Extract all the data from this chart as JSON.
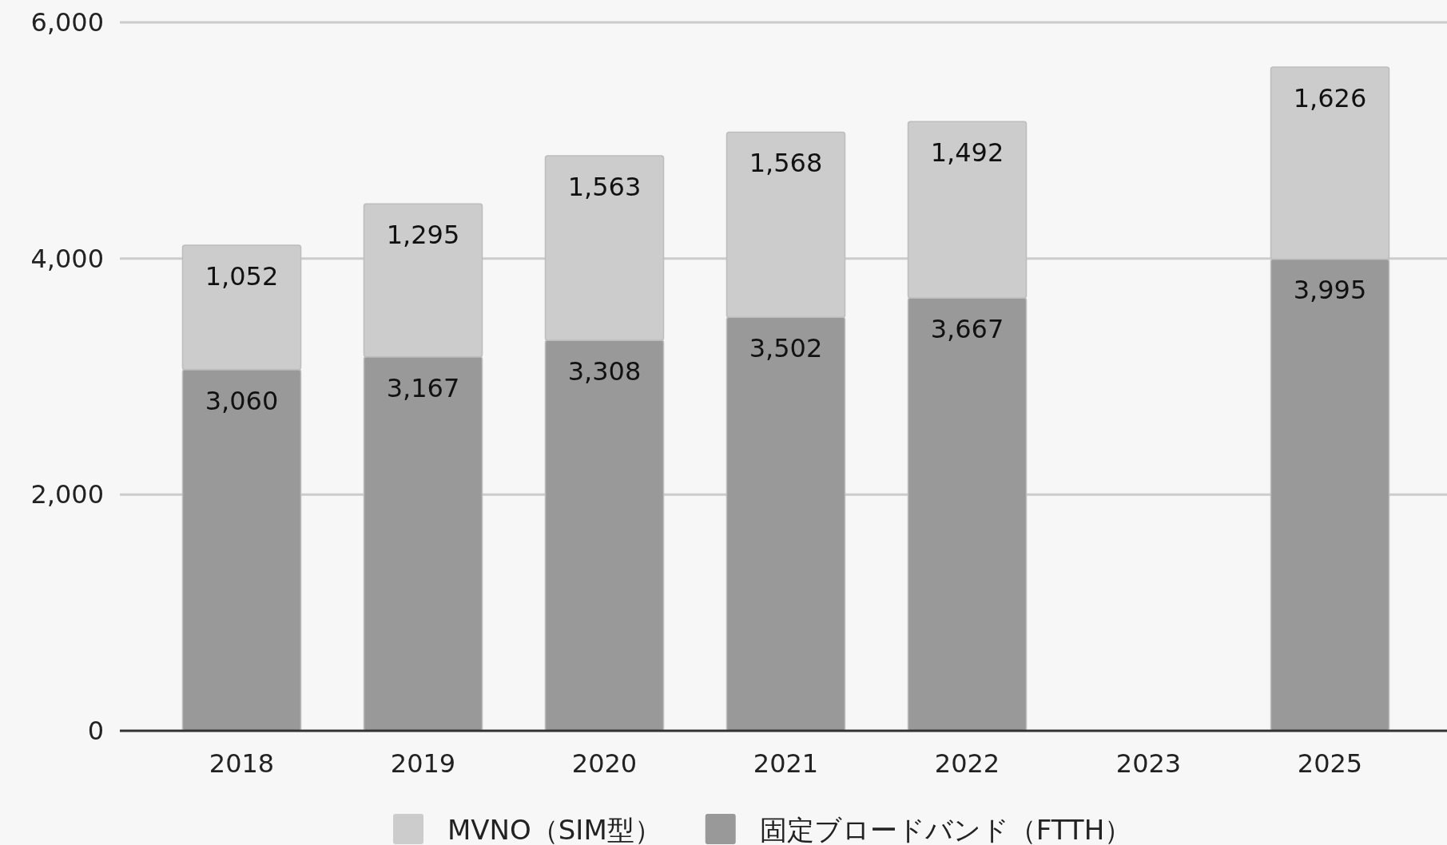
{
  "chart_data": {
    "type": "bar",
    "stacked": true,
    "categories": [
      "2018",
      "2019",
      "2020",
      "2021",
      "2022",
      "2023",
      "2025"
    ],
    "series": [
      {
        "name": "固定ブロードバンド（FTTH）",
        "color": "#999999",
        "values": [
          3060,
          3167,
          3308,
          3502,
          3667,
          null,
          3995
        ],
        "value_labels": [
          "3,060",
          "3,167",
          "3,308",
          "3,502",
          "3,667",
          null,
          "3,995"
        ]
      },
      {
        "name": "MVNO（SIM型）",
        "color": "#cccccc",
        "values": [
          1052,
          1295,
          1563,
          1568,
          1492,
          null,
          1626
        ],
        "value_labels": [
          "1,052",
          "1,295",
          "1,563",
          "1,568",
          "1,492",
          null,
          "1,626"
        ]
      }
    ],
    "ylim": [
      0,
      6000
    ],
    "yticks": [
      {
        "value": 0,
        "label": "0"
      },
      {
        "value": 2000,
        "label": "2,000"
      },
      {
        "value": 4000,
        "label": "4,000"
      },
      {
        "value": 6000,
        "label": "6,000"
      }
    ],
    "grid": "y",
    "legend": "bottom"
  }
}
